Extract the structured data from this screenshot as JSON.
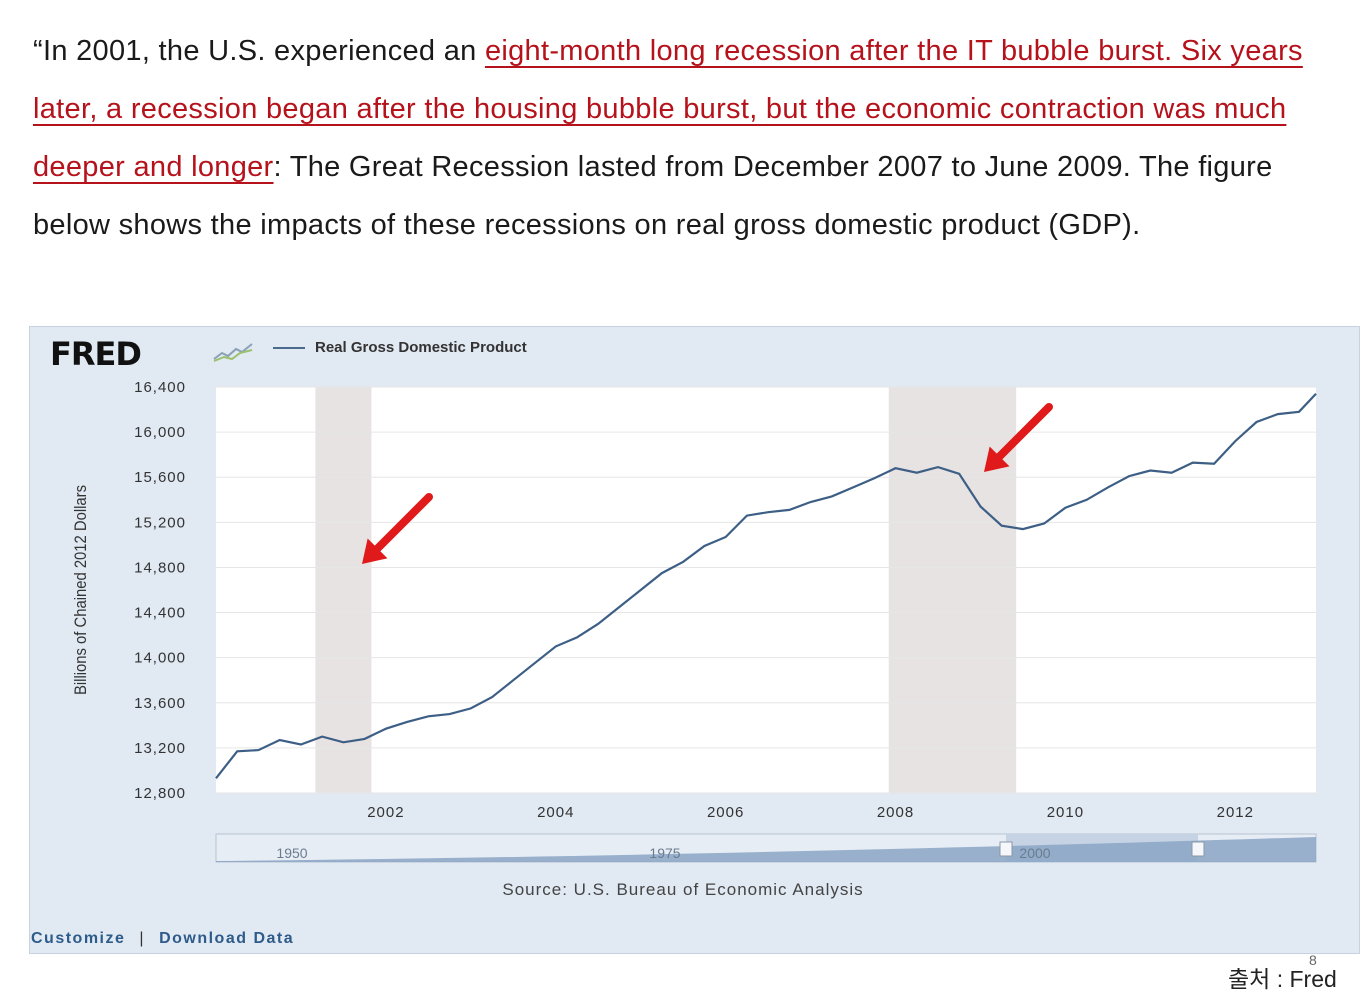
{
  "quote": {
    "p1": "“In 2001, the U.S. experienced an ",
    "hl1": "eight-month long recession after the IT bubble burst. Six years later, a recession began after the housing bubble burst, but the economic contraction was much deeper and longer",
    "p2": ": The Great Recession lasted from December 2007 to June 2009. The figure below shows the impacts of these recessions on real gross domestic product (GDP)."
  },
  "fred": {
    "logo": "FRED",
    "source": "Source: U.S. Bureau of Economic Analysis",
    "customize": "Customize",
    "separator": "|",
    "download": "Download Data"
  },
  "credit": "출처 : Fred",
  "page_number": "8",
  "colors": {
    "line": "#3d5f86",
    "recession": "#e7e3e3",
    "plot_bg": "#ffffff",
    "panel_bg": "#e1e9f3",
    "arrow": "#e01a1a",
    "highlight": "#b5121b"
  },
  "chart_data": {
    "type": "line",
    "title": "",
    "legend": [
      "Real Gross Domestic Product"
    ],
    "xlabel": "",
    "ylabel": "Billions of Chained 2012 Dollars",
    "ylim": [
      12800,
      16400
    ],
    "xlim": [
      2000.0,
      2012.95
    ],
    "yticks": [
      12800,
      13200,
      13600,
      14000,
      14400,
      14800,
      15200,
      15600,
      16000,
      16400
    ],
    "ytick_labels": [
      "12,800",
      "13,200",
      "13,600",
      "14,000",
      "14,400",
      "14,800",
      "15,200",
      "15,600",
      "16,000",
      "16,400"
    ],
    "xticks": [
      2002,
      2004,
      2006,
      2008,
      2010,
      2012
    ],
    "xtick_labels": [
      "2002",
      "2004",
      "2006",
      "2008",
      "2010",
      "2012"
    ],
    "recessions": [
      [
        2001.17,
        2001.83
      ],
      [
        2007.92,
        2009.42
      ]
    ],
    "series": [
      {
        "name": "Real Gross Domestic Product",
        "x": [
          2000.0,
          2000.25,
          2000.5,
          2000.75,
          2001.0,
          2001.25,
          2001.5,
          2001.75,
          2002.0,
          2002.25,
          2002.5,
          2002.75,
          2003.0,
          2003.25,
          2003.5,
          2003.75,
          2004.0,
          2004.25,
          2004.5,
          2004.75,
          2005.0,
          2005.25,
          2005.5,
          2005.75,
          2006.0,
          2006.25,
          2006.5,
          2006.75,
          2007.0,
          2007.25,
          2007.5,
          2007.75,
          2008.0,
          2008.25,
          2008.5,
          2008.75,
          2009.0,
          2009.25,
          2009.5,
          2009.75,
          2010.0,
          2010.25,
          2010.5,
          2010.75,
          2011.0,
          2011.25,
          2011.5,
          2011.75,
          2012.0,
          2012.25,
          2012.5,
          2012.75,
          2012.95
        ],
        "y": [
          12930,
          13170,
          13180,
          13270,
          13230,
          13300,
          13250,
          13280,
          13370,
          13430,
          13480,
          13500,
          13550,
          13650,
          13800,
          13950,
          14100,
          14180,
          14300,
          14450,
          14600,
          14750,
          14850,
          14990,
          15070,
          15260,
          15290,
          15310,
          15380,
          15430,
          15510,
          15590,
          15680,
          15640,
          15690,
          15630,
          15340,
          15170,
          15140,
          15190,
          15330,
          15400,
          15510,
          15610,
          15660,
          15640,
          15730,
          15720,
          15920,
          16090,
          16160,
          16180,
          16340
        ]
      }
    ],
    "navigator": {
      "labels": [
        "1950",
        "1975",
        "2000"
      ]
    }
  }
}
